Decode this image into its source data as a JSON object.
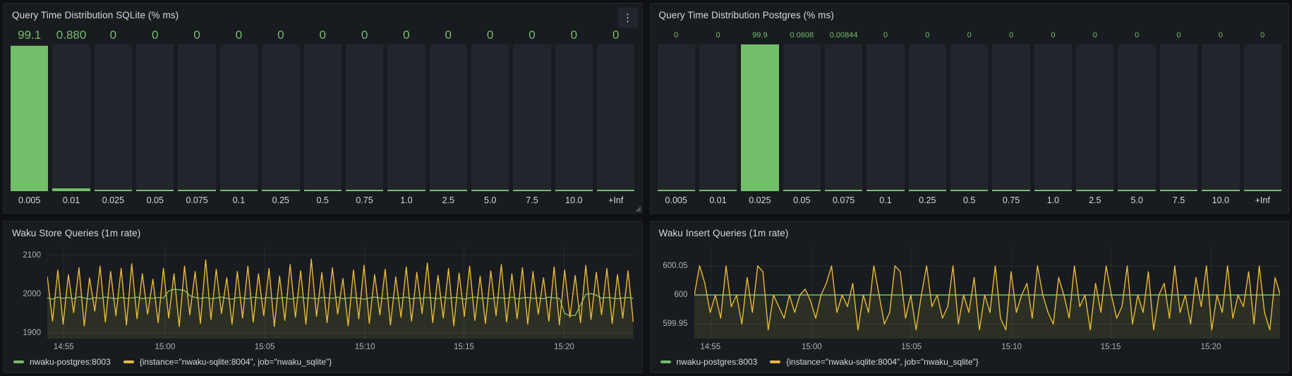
{
  "colors": {
    "green": "#73bf69",
    "yellow": "#eab839",
    "panel_bg": "#181b1f",
    "bar_track": "#22252b",
    "title_text": "#d8d9da",
    "axis_text": "#aeb3bb"
  },
  "menu_icon": "⋮",
  "chart_data": [
    {
      "type": "bar",
      "title": "Query Time Distribution SQLite (% ms)",
      "ylabel": "%",
      "ylim": [
        0,
        100
      ],
      "categories": [
        "0.005",
        "0.01",
        "0.025",
        "0.05",
        "0.075",
        "0.1",
        "0.25",
        "0.5",
        "0.75",
        "1.0",
        "2.5",
        "5.0",
        "7.5",
        "10.0",
        "+Inf"
      ],
      "values": [
        99.1,
        0.88,
        0,
        0,
        0,
        0,
        0,
        0,
        0,
        0,
        0,
        0,
        0,
        0,
        0
      ],
      "display_values": [
        "99.1",
        "0.880",
        "0",
        "0",
        "0",
        "0",
        "0",
        "0",
        "0",
        "0",
        "0",
        "0",
        "0",
        "0",
        "0"
      ]
    },
    {
      "type": "bar",
      "title": "Query Time Distribution Postgres (% ms)",
      "ylabel": "%",
      "ylim": [
        0,
        100
      ],
      "categories": [
        "0.005",
        "0.01",
        "0.025",
        "0.05",
        "0.075",
        "0.1",
        "0.25",
        "0.5",
        "0.75",
        "1.0",
        "2.5",
        "5.0",
        "7.5",
        "10.0",
        "+Inf"
      ],
      "values": [
        0,
        0,
        99.9,
        0.0608,
        0.00844,
        0,
        0,
        0,
        0,
        0,
        0,
        0,
        0,
        0,
        0
      ],
      "display_values": [
        "0",
        "0",
        "99.9",
        "0.0608",
        "0.00844",
        "0",
        "0",
        "0",
        "0",
        "0",
        "0",
        "0",
        "0",
        "0",
        "0"
      ]
    },
    {
      "type": "line",
      "title": "Waku Store Queries (1m rate)",
      "ylim": [
        1885,
        2125
      ],
      "yticks": [
        {
          "v": 1900,
          "label": "1900"
        },
        {
          "v": 2000,
          "label": "2000"
        },
        {
          "v": 2100,
          "label": "2100"
        }
      ],
      "xticks": [
        {
          "label": "14:55",
          "f": 0.028
        },
        {
          "label": "15:00",
          "f": 0.201
        },
        {
          "label": "15:05",
          "f": 0.371
        },
        {
          "label": "15:10",
          "f": 0.542
        },
        {
          "label": "15:15",
          "f": 0.711
        },
        {
          "label": "15:20",
          "f": 0.882
        }
      ],
      "grid": true,
      "legend_position": "bottom",
      "series": [
        {
          "name": "nwaku-postgres:8003",
          "color": "#73bf69",
          "values": [
            1990,
            1987,
            1992,
            1989,
            1991,
            1988,
            1993,
            1990,
            1987,
            1991,
            1989,
            1992,
            1990,
            1988,
            1991,
            1989,
            1990,
            1992,
            1988,
            1990,
            1989,
            1991,
            1990,
            2008,
            2012,
            2011,
            2009,
            1996,
            1991,
            1989,
            1991,
            1988,
            1990,
            1992,
            1989,
            1987,
            1991,
            1990,
            1988,
            1992,
            1990,
            1989,
            1991,
            1988,
            1990,
            1991,
            1987,
            1990,
            1992,
            1989,
            1990,
            1988,
            1991,
            1990,
            1989,
            1992,
            1988,
            1990,
            1991,
            1989,
            1987,
            1990,
            1992,
            1990,
            1988,
            1991,
            1989,
            1990,
            1992,
            1988,
            1990,
            1989,
            1991,
            1990,
            1988,
            1992,
            1989,
            1991,
            1990,
            1987,
            1990,
            1992,
            1989,
            1990,
            1988,
            1991,
            1990,
            1989,
            1992,
            1988,
            1990,
            1991,
            1989,
            1990,
            1988,
            1992,
            1990,
            1989,
            1950,
            1944,
            1945,
            1972,
            1999,
            2001,
            1997,
            1989,
            1991,
            1990,
            1988,
            1990,
            1991,
            1989
          ]
        },
        {
          "name": "{instance=\"nwaku-sqlite:8004\", job=\"nwaku_sqlite\"}",
          "color": "#eab839",
          "values": [
            2045,
            1930,
            2062,
            1922,
            2050,
            1952,
            2068,
            1918,
            2042,
            1956,
            2072,
            1928,
            2058,
            1944,
            2066,
            1920,
            2078,
            1936,
            2052,
            1948,
            2038,
            1926,
            2066,
            1938,
            2052,
            1916,
            2072,
            1946,
            2058,
            1924,
            2088,
            1934,
            2064,
            1950,
            2042,
            1922,
            2058,
            1938,
            2072,
            1928,
            2052,
            1944,
            2066,
            1916,
            2046,
            1932,
            2076,
            1940,
            2060,
            1922,
            2090,
            1942,
            2055,
            1926,
            2068,
            1948,
            2040,
            1918,
            2062,
            1936,
            2074,
            1924,
            2050,
            1946,
            2064,
            1920,
            2044,
            1940,
            2070,
            1930,
            2056,
            1950,
            2080,
            1926,
            2048,
            1938,
            2066,
            1918,
            2054,
            1942,
            2072,
            1932,
            2046,
            1924,
            2060,
            1944,
            2076,
            1928,
            2052,
            1936,
            2068,
            1922,
            2058,
            1948,
            2042,
            1930,
            2070,
            1920,
            2062,
            1940,
            2048,
            1926,
            2074,
            1934,
            2056,
            1946,
            2066,
            1924,
            2050,
            1938,
            2060,
            1928
          ]
        }
      ]
    },
    {
      "type": "line",
      "title": "Waku Insert Queries (1m rate)",
      "ylim": [
        599.925,
        600.085
      ],
      "yticks": [
        {
          "v": 599.95,
          "label": "599.95"
        },
        {
          "v": 600,
          "label": "600"
        },
        {
          "v": 600.05,
          "label": "600.05"
        }
      ],
      "xticks": [
        {
          "label": "14:55",
          "f": 0.028
        },
        {
          "label": "15:00",
          "f": 0.201
        },
        {
          "label": "15:05",
          "f": 0.371
        },
        {
          "label": "15:10",
          "f": 0.542
        },
        {
          "label": "15:15",
          "f": 0.711
        },
        {
          "label": "15:20",
          "f": 0.882
        }
      ],
      "grid": true,
      "legend_position": "bottom",
      "series": [
        {
          "name": "nwaku-postgres:8003",
          "color": "#73bf69",
          "values": [
            600,
            600
          ]
        },
        {
          "name": "{instance=\"nwaku-sqlite:8004\", job=\"nwaku_sqlite\"}",
          "color": "#eab839",
          "values": [
            600,
            600.05,
            600.02,
            599.97,
            600,
            599.96,
            600.05,
            599.98,
            600,
            599.95,
            600.03,
            599.97,
            600.05,
            600.04,
            599.94,
            600,
            599.98,
            599.96,
            600,
            599.97,
            600,
            600.01,
            599.99,
            599.96,
            600,
            600.02,
            600.05,
            599.97,
            600,
            599.98,
            600.02,
            599.94,
            600,
            599.97,
            600.05,
            600,
            599.95,
            599.97,
            600.05,
            600.04,
            599.96,
            600,
            599.94,
            600,
            600.05,
            599.98,
            600,
            599.96,
            599.98,
            600.05,
            599.95,
            600,
            599.97,
            600.03,
            599.94,
            600,
            599.97,
            600.05,
            599.96,
            599.94,
            600.04,
            599.97,
            600,
            600.02,
            599.96,
            600.05,
            600,
            599.97,
            599.95,
            600.03,
            600,
            599.96,
            600.05,
            599.98,
            600,
            599.94,
            600.02,
            599.97,
            600.05,
            600,
            599.96,
            599.98,
            600.05,
            599.95,
            600,
            599.97,
            600.04,
            599.94,
            600,
            600.02,
            599.96,
            600.05,
            599.97,
            600,
            599.95,
            600.03,
            599.98,
            600.05,
            599.94,
            600,
            599.97,
            600.05,
            599.96,
            600,
            599.98,
            600.04,
            599.95,
            600.05,
            599.97,
            599.94,
            600.03,
            600
          ]
        }
      ]
    }
  ]
}
